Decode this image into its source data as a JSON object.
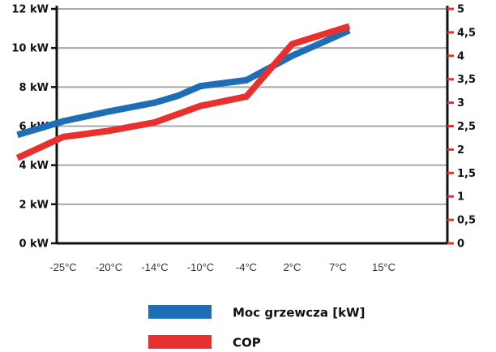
{
  "chart_data": {
    "type": "line",
    "title": "",
    "xlabel": "",
    "ylabel": "",
    "x_categories": [
      "-25°C",
      "-20°C",
      "-14°C",
      "-10°C",
      "-4°C",
      "2°C",
      "7°C",
      "15°C"
    ],
    "y_left": {
      "ticks": [
        "0 kW",
        "2 kW",
        "4 kW",
        "6 kW",
        "8 kW",
        "10 kW",
        "12 kW"
      ],
      "ylim": [
        0,
        12
      ],
      "color": "#111111"
    },
    "y_right": {
      "ticks": [
        "0",
        "0,5",
        "1",
        "1,5",
        "2",
        "2,5",
        "3",
        "3,5",
        "4",
        "4,5",
        "5"
      ],
      "ylim": [
        0,
        5
      ],
      "color": "#e8312f"
    },
    "grid": true,
    "legend_position": "bottom",
    "series": [
      {
        "name": "Moc grzewcza [kW]",
        "axis": "left",
        "color": "#1f6db5",
        "points": [
          {
            "x": -1.0,
            "y": 5.55
          },
          {
            "x": 0.0,
            "y": 6.25
          },
          {
            "x": 1.0,
            "y": 6.75
          },
          {
            "x": 2.0,
            "y": 7.2
          },
          {
            "x": 2.5,
            "y": 7.55
          },
          {
            "x": 3.0,
            "y": 8.05
          },
          {
            "x": 4.0,
            "y": 8.35
          },
          {
            "x": 5.0,
            "y": 9.6
          },
          {
            "x": 6.25,
            "y": 10.9
          }
        ]
      },
      {
        "name": "COP",
        "axis": "right",
        "color": "#e8312f",
        "points": [
          {
            "x": -1.0,
            "y": 1.82
          },
          {
            "x": 0.0,
            "y": 2.27
          },
          {
            "x": 1.0,
            "y": 2.4
          },
          {
            "x": 2.0,
            "y": 2.58
          },
          {
            "x": 3.0,
            "y": 2.93
          },
          {
            "x": 4.0,
            "y": 3.13
          },
          {
            "x": 5.0,
            "y": 4.25
          },
          {
            "x": 6.25,
            "y": 4.63
          }
        ]
      }
    ]
  }
}
